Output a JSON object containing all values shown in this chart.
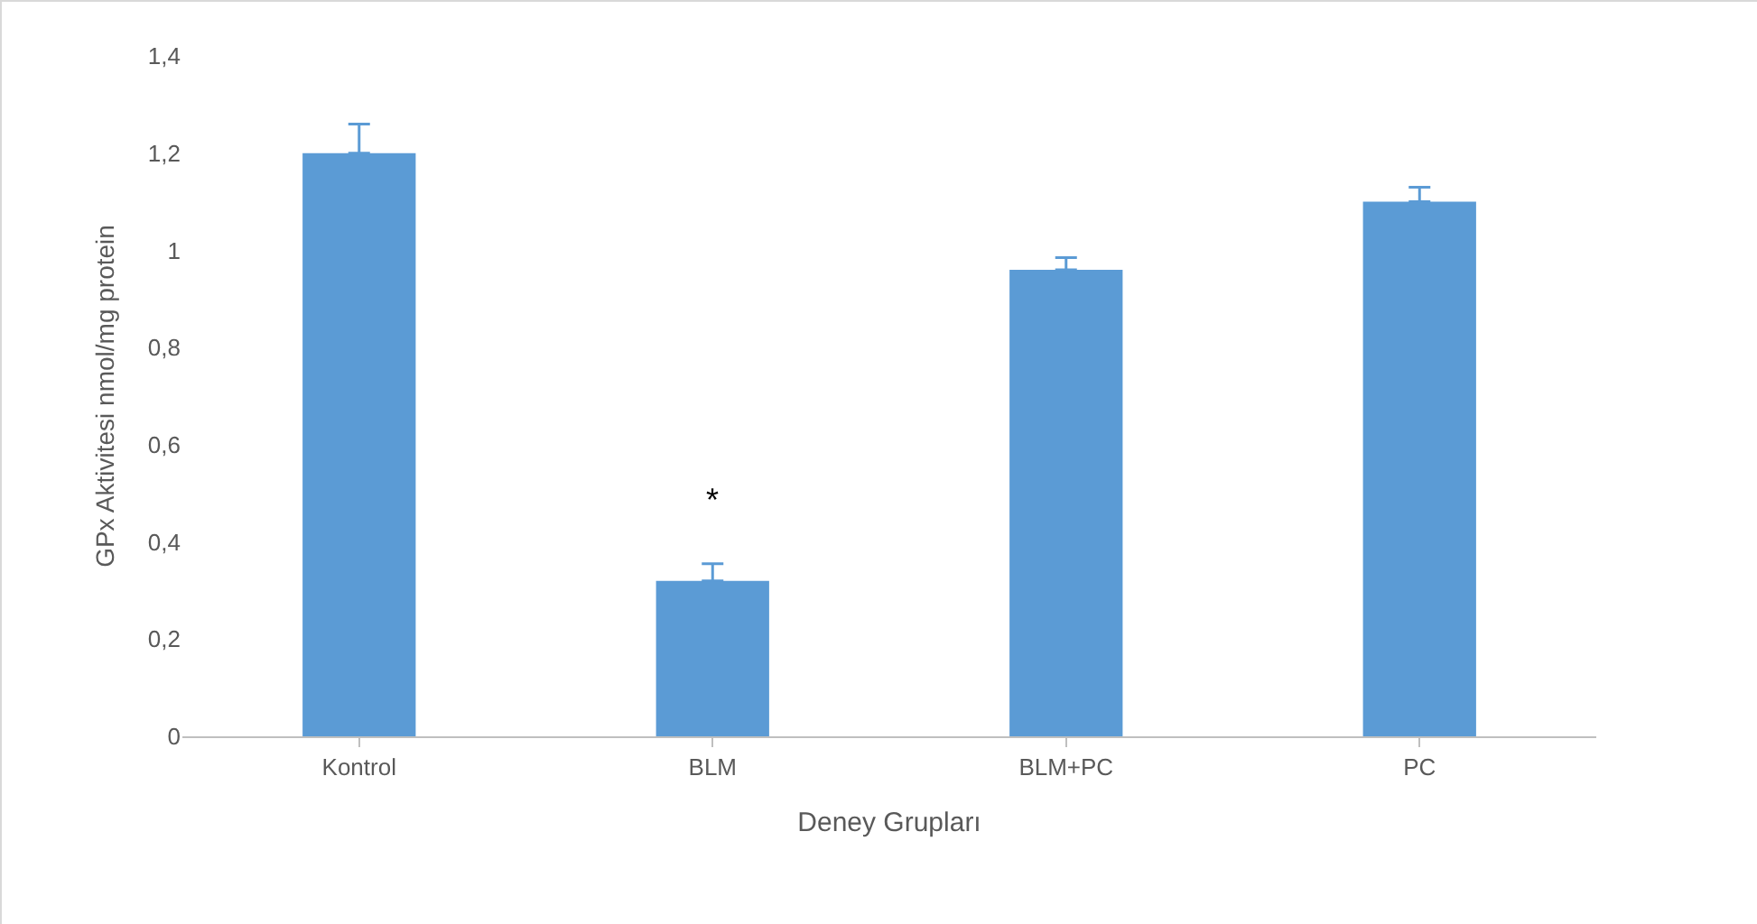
{
  "chart_data": {
    "type": "bar",
    "xlabel": "Deney Grupları",
    "ylabel": "GPx Aktivitesi nmol/mg protein",
    "categories": [
      "Kontrol",
      "BLM",
      "BLM+PC",
      "PC"
    ],
    "values": [
      1.2,
      0.32,
      0.96,
      1.1
    ],
    "errors": [
      [
        1.2,
        1.26
      ],
      [
        0.32,
        0.355
      ],
      [
        0.96,
        0.985
      ],
      [
        1.1,
        1.13
      ]
    ],
    "color": "#5b9bd5",
    "ylim": [
      0,
      1.4
    ],
    "yticks": [
      {
        "value": 0,
        "label": "0"
      },
      {
        "value": 0.2,
        "label": "0,2"
      },
      {
        "value": 0.4,
        "label": "0,4"
      },
      {
        "value": 0.6,
        "label": "0,6"
      },
      {
        "value": 0.8,
        "label": "0,8"
      },
      {
        "value": 1,
        "label": "1"
      },
      {
        "value": 1.2,
        "label": "1,2"
      },
      {
        "value": 1.4,
        "label": "1,4"
      }
    ],
    "annotations": [
      "*"
    ],
    "grid": false,
    "legend": false
  }
}
